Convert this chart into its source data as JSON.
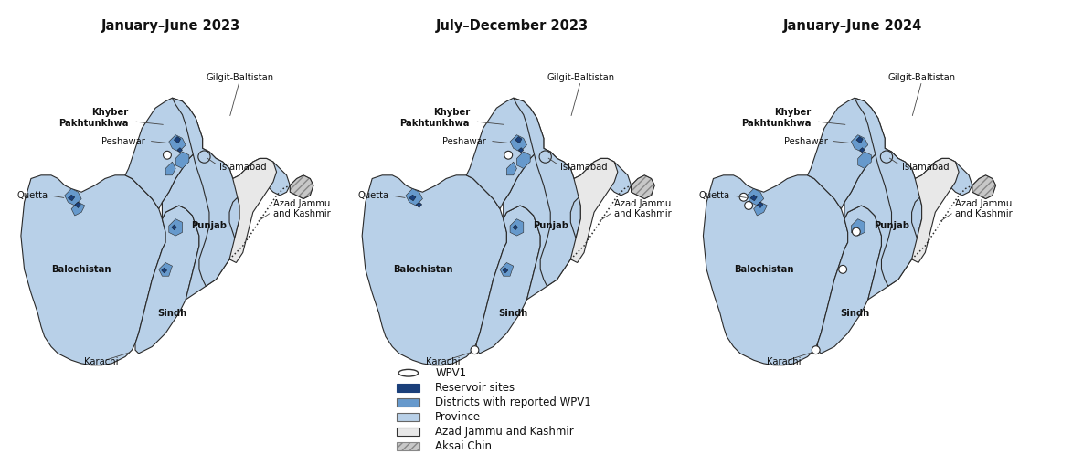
{
  "titles": [
    "January–June 2023",
    "July–December 2023",
    "January–June 2024"
  ],
  "fig_width": 11.85,
  "fig_height": 5.09,
  "bg_color": "#ffffff",
  "province_color": "#b8d0e8",
  "district_wpv1_color": "#6699cc",
  "reservoir_color": "#1a3f7a",
  "azad_kashmir_color": "#e8e8e8",
  "aksai_chin_color": "#c8c8c8",
  "border_color": "#2a2a2a",
  "title_fontsize": 10.5,
  "label_fontsize": 7.2,
  "legend_fontsize": 8.5
}
